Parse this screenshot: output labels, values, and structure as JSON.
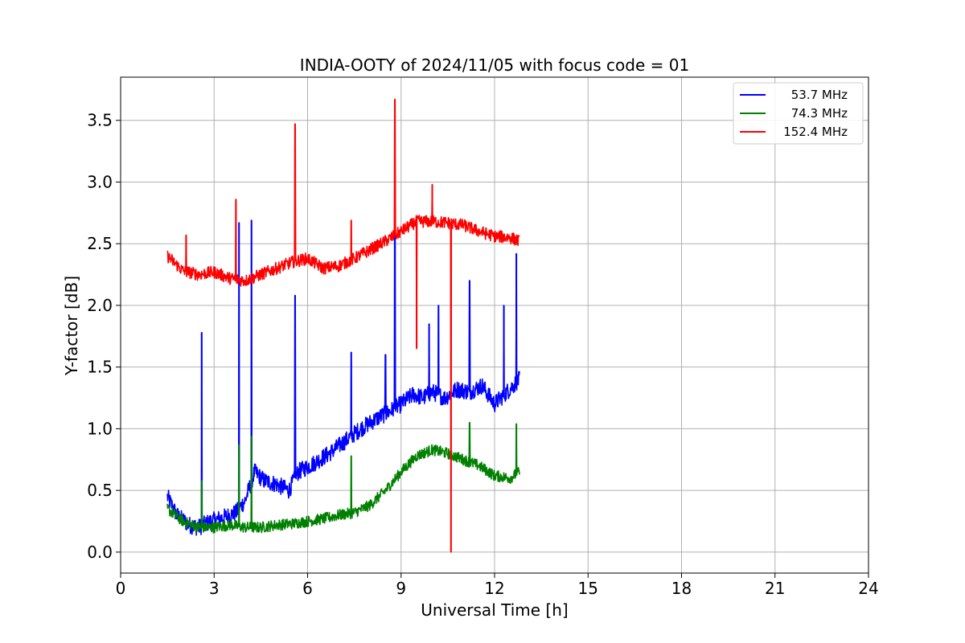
{
  "chart_data": {
    "type": "line",
    "title": "INDIA-OOTY of 2024/11/05 with focus code = 01",
    "xlabel": "Universal Time [h]",
    "ylabel": "Y-factor [dB]",
    "xlim": [
      0,
      24
    ],
    "ylim": [
      -0.17,
      3.85
    ],
    "xticks": [
      0,
      3,
      6,
      9,
      12,
      15,
      18,
      21,
      24
    ],
    "yticks": [
      0.0,
      0.5,
      1.0,
      1.5,
      2.0,
      2.5,
      3.0,
      3.5
    ],
    "xtick_labels": [
      "0",
      "3",
      "6",
      "9",
      "12",
      "15",
      "18",
      "21",
      "24"
    ],
    "ytick_labels": [
      "0.0",
      "0.5",
      "1.0",
      "1.5",
      "2.0",
      "2.5",
      "3.0",
      "3.5"
    ],
    "grid": true,
    "legend_position": "top-right",
    "series": [
      {
        "name": "53.7 MHz",
        "color": "#0000ff",
        "x": [
          1.5,
          1.8,
          2.2,
          2.5,
          2.9,
          3.3,
          3.7,
          4.0,
          4.3,
          4.6,
          5.0,
          5.4,
          5.7,
          6.2,
          6.7,
          7.2,
          7.7,
          8.2,
          8.7,
          9.0,
          9.4,
          9.7,
          10.0,
          10.4,
          10.8,
          11.2,
          11.6,
          12.0,
          12.4,
          12.8
        ],
        "y": [
          0.45,
          0.3,
          0.22,
          0.2,
          0.25,
          0.28,
          0.32,
          0.42,
          0.65,
          0.58,
          0.55,
          0.5,
          0.65,
          0.72,
          0.8,
          0.9,
          1.0,
          1.08,
          1.15,
          1.2,
          1.28,
          1.25,
          1.3,
          1.25,
          1.32,
          1.3,
          1.35,
          1.2,
          1.3,
          1.4
        ],
        "spikes": [
          [
            2.6,
            1.78
          ],
          [
            3.8,
            2.67
          ],
          [
            4.2,
            2.69
          ],
          [
            5.6,
            2.08
          ],
          [
            7.4,
            1.62
          ],
          [
            8.5,
            1.6
          ],
          [
            8.8,
            2.95
          ],
          [
            9.9,
            1.85
          ],
          [
            10.2,
            2.0
          ],
          [
            11.2,
            2.2
          ],
          [
            12.3,
            2.0
          ],
          [
            12.7,
            2.42
          ]
        ]
      },
      {
        "name": "74.3 MHz",
        "color": "#008000",
        "x": [
          1.5,
          2.0,
          2.5,
          3.0,
          3.5,
          4.0,
          4.5,
          5.0,
          5.5,
          6.0,
          6.5,
          7.0,
          7.5,
          8.0,
          8.5,
          9.0,
          9.5,
          10.0,
          10.5,
          11.0,
          11.5,
          12.0,
          12.5,
          12.8
        ],
        "y": [
          0.35,
          0.25,
          0.2,
          0.2,
          0.22,
          0.2,
          0.2,
          0.22,
          0.23,
          0.25,
          0.27,
          0.3,
          0.32,
          0.38,
          0.5,
          0.65,
          0.78,
          0.83,
          0.8,
          0.75,
          0.7,
          0.62,
          0.6,
          0.65
        ],
        "spikes": [
          [
            2.6,
            0.58
          ],
          [
            3.8,
            0.87
          ],
          [
            4.2,
            0.94
          ],
          [
            7.4,
            0.78
          ],
          [
            11.2,
            1.05
          ],
          [
            12.7,
            1.04
          ]
        ]
      },
      {
        "name": "152.4 MHz",
        "color": "#ff0000",
        "x": [
          1.5,
          2.0,
          2.5,
          3.0,
          3.5,
          4.0,
          4.5,
          5.0,
          5.5,
          6.0,
          6.5,
          7.0,
          7.5,
          8.0,
          8.5,
          9.0,
          9.5,
          10.0,
          10.5,
          11.0,
          11.5,
          12.0,
          12.5,
          12.8
        ],
        "y": [
          2.4,
          2.28,
          2.25,
          2.27,
          2.22,
          2.2,
          2.25,
          2.3,
          2.35,
          2.38,
          2.3,
          2.32,
          2.38,
          2.45,
          2.52,
          2.6,
          2.68,
          2.68,
          2.67,
          2.65,
          2.6,
          2.56,
          2.55,
          2.52
        ],
        "spikes": [
          [
            2.1,
            2.57
          ],
          [
            3.7,
            2.86
          ],
          [
            5.6,
            3.47
          ],
          [
            7.4,
            2.69
          ],
          [
            8.8,
            3.67
          ],
          [
            10.0,
            2.98
          ]
        ],
        "dips": [
          [
            9.5,
            1.65
          ],
          [
            10.6,
            0.0
          ]
        ]
      }
    ]
  }
}
